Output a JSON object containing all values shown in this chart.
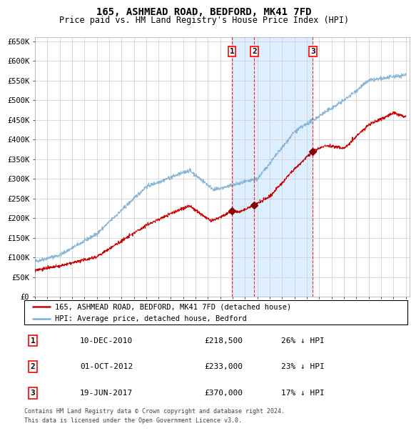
{
  "title": "165, ASHMEAD ROAD, BEDFORD, MK41 7FD",
  "subtitle": "Price paid vs. HM Land Registry's House Price Index (HPI)",
  "x_start_year": 1995,
  "x_end_year": 2025,
  "y_ticks": [
    0,
    50000,
    100000,
    150000,
    200000,
    250000,
    300000,
    350000,
    400000,
    450000,
    500000,
    550000,
    600000,
    650000
  ],
  "y_labels": [
    "£0",
    "£50K",
    "£100K",
    "£150K",
    "£200K",
    "£250K",
    "£300K",
    "£350K",
    "£400K",
    "£450K",
    "£500K",
    "£550K",
    "£600K",
    "£650K"
  ],
  "hpi_color": "#7bafd4",
  "price_color": "#cc0000",
  "sale_marker_color": "#880000",
  "shaded_region_color": "#ddeeff",
  "grid_color": "#cccccc",
  "background_color": "#ffffff",
  "transactions": [
    {
      "date_num": 2010.94,
      "price": 218500,
      "label": "1"
    },
    {
      "date_num": 2012.75,
      "price": 233000,
      "label": "2"
    },
    {
      "date_num": 2017.47,
      "price": 370000,
      "label": "3"
    }
  ],
  "legend_line1": "165, ASHMEAD ROAD, BEDFORD, MK41 7FD (detached house)",
  "legend_line2": "HPI: Average price, detached house, Bedford",
  "table_entries": [
    {
      "num": "1",
      "date": "10-DEC-2010",
      "price": "£218,500",
      "pct": "26% ↓ HPI"
    },
    {
      "num": "2",
      "date": "01-OCT-2012",
      "price": "£233,000",
      "pct": "23% ↓ HPI"
    },
    {
      "num": "3",
      "date": "19-JUN-2017",
      "price": "£370,000",
      "pct": "17% ↓ HPI"
    }
  ],
  "footnote1": "Contains HM Land Registry data © Crown copyright and database right 2024.",
  "footnote2": "This data is licensed under the Open Government Licence v3.0."
}
